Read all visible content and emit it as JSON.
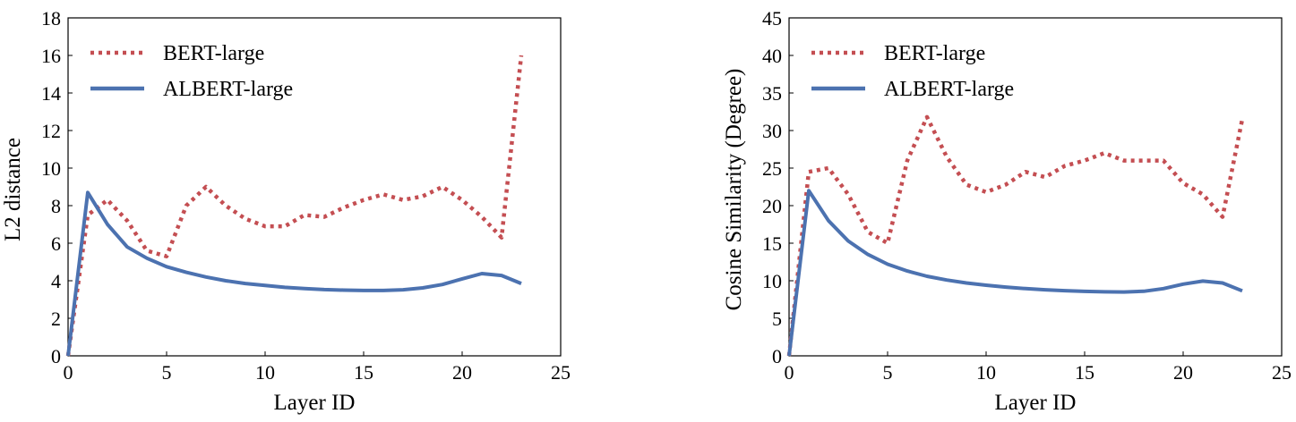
{
  "chart_data": [
    {
      "type": "line",
      "xlabel": "Layer ID",
      "ylabel": "L2 distance",
      "xlim": [
        0,
        25
      ],
      "ylim": [
        0,
        18
      ],
      "xticks": [
        0,
        5,
        10,
        15,
        20,
        25
      ],
      "yticks": [
        0,
        2,
        4,
        6,
        8,
        10,
        12,
        14,
        16,
        18
      ],
      "grid": false,
      "legend_position": "top-left",
      "series": [
        {
          "name": "BERT-large",
          "color": "#c44e52",
          "style": "dotted",
          "x": [
            0,
            1,
            2,
            3,
            4,
            5,
            6,
            7,
            8,
            9,
            10,
            11,
            12,
            13,
            14,
            15,
            16,
            17,
            18,
            19,
            20,
            21,
            22,
            23
          ],
          "values": [
            0,
            7.5,
            8.3,
            7.2,
            5.6,
            5.3,
            8.0,
            9.0,
            8.0,
            7.3,
            6.9,
            6.9,
            7.5,
            7.4,
            7.9,
            8.3,
            8.6,
            8.3,
            8.5,
            9.0,
            8.3,
            7.4,
            6.3,
            16.0
          ]
        },
        {
          "name": "ALBERT-large",
          "color": "#4c72b0",
          "style": "solid",
          "x": [
            0,
            1,
            2,
            3,
            4,
            5,
            6,
            7,
            8,
            9,
            10,
            11,
            12,
            13,
            14,
            15,
            16,
            17,
            18,
            19,
            20,
            21,
            22,
            23
          ],
          "values": [
            0,
            8.7,
            7.0,
            5.8,
            5.2,
            4.75,
            4.45,
            4.2,
            4.0,
            3.85,
            3.75,
            3.65,
            3.58,
            3.53,
            3.5,
            3.48,
            3.48,
            3.52,
            3.62,
            3.8,
            4.1,
            4.38,
            4.28,
            3.85
          ]
        }
      ]
    },
    {
      "type": "line",
      "xlabel": "Layer ID",
      "ylabel": "Cosine Similarity (Degree)",
      "xlim": [
        0,
        25
      ],
      "ylim": [
        0,
        45
      ],
      "xticks": [
        0,
        5,
        10,
        15,
        20,
        25
      ],
      "yticks": [
        0,
        5,
        10,
        15,
        20,
        25,
        30,
        35,
        40,
        45
      ],
      "grid": false,
      "legend_position": "top-left",
      "series": [
        {
          "name": "BERT-large",
          "color": "#c44e52",
          "style": "dotted",
          "x": [
            0,
            1,
            2,
            3,
            4,
            5,
            6,
            7,
            8,
            9,
            10,
            11,
            12,
            13,
            14,
            15,
            16,
            17,
            18,
            19,
            20,
            21,
            22,
            23
          ],
          "values": [
            0,
            24.5,
            25.0,
            21.5,
            16.5,
            15.0,
            26.0,
            31.8,
            26.5,
            22.8,
            21.8,
            22.8,
            24.5,
            23.8,
            25.3,
            26.0,
            27.0,
            26.0,
            26.0,
            26.0,
            23.0,
            21.5,
            18.5,
            31.5
          ]
        },
        {
          "name": "ALBERT-large",
          "color": "#4c72b0",
          "style": "solid",
          "x": [
            0,
            1,
            2,
            3,
            4,
            5,
            6,
            7,
            8,
            9,
            10,
            11,
            12,
            13,
            14,
            15,
            16,
            17,
            18,
            19,
            20,
            21,
            22,
            23
          ],
          "values": [
            0,
            22.0,
            18.0,
            15.3,
            13.5,
            12.2,
            11.3,
            10.6,
            10.1,
            9.7,
            9.4,
            9.15,
            8.95,
            8.8,
            8.68,
            8.58,
            8.52,
            8.5,
            8.6,
            8.95,
            9.55,
            9.95,
            9.7,
            8.65
          ]
        }
      ]
    }
  ]
}
